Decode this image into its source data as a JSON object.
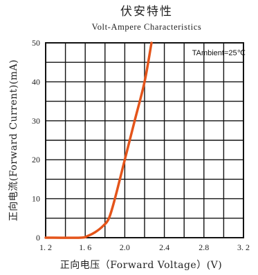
{
  "chart_data": {
    "type": "line",
    "title": "伏安特性",
    "subtitle": "Volt-Ampere Characteristics",
    "xlabel": "正向电压（Forward Voltage）(V)",
    "ylabel": "正向电流(Forward Current)(mA)",
    "annotation": "TAmbient=25℃",
    "xlim": [
      1.2,
      3.2
    ],
    "ylim": [
      0,
      50
    ],
    "x_ticks": [
      1.2,
      1.6,
      2.0,
      2.4,
      2.8,
      3.2
    ],
    "x_tick_labels": [
      "1. 2",
      "1. 6",
      "2.0",
      "2.4",
      "2.8",
      "3. 2"
    ],
    "y_ticks": [
      0,
      10,
      20,
      30,
      40,
      50
    ],
    "y_tick_labels": [
      "0",
      "10",
      "20",
      "30",
      "40",
      "50"
    ],
    "grid": true,
    "grid_x_divisions": 10,
    "grid_y_divisions": 10,
    "series": [
      {
        "color": "#e4541a",
        "x": [
          1.2,
          1.55,
          1.62,
          1.7,
          1.78,
          1.84,
          1.9,
          2.0,
          2.1,
          2.2,
          2.27
        ],
        "y": [
          0,
          0,
          0.4,
          1.4,
          3.0,
          5.0,
          10.0,
          20.0,
          30.0,
          40.0,
          50.0
        ]
      }
    ]
  }
}
